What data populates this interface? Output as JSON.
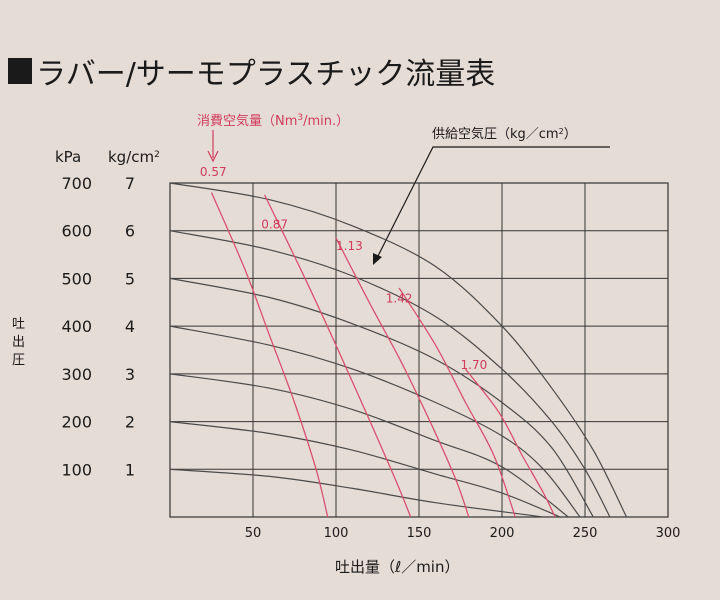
{
  "chart_data": {
    "type": "line",
    "title": "ラバー/サーモプラスチック流量表",
    "xlabel": "吐出量（ℓ／min）",
    "ylabel": "吐出圧",
    "y_unit_kpa": "kPa",
    "y_unit_kgcm": "kg/cm",
    "y_unit_kgcm_sup": "2",
    "xlim": [
      0,
      300
    ],
    "ylim": [
      0,
      7
    ],
    "x_ticks": [
      "50",
      "100",
      "150",
      "200",
      "250",
      "300"
    ],
    "x_tick_values": [
      50,
      100,
      150,
      200,
      250,
      300
    ],
    "y_ticks_kpa": [
      "100",
      "200",
      "300",
      "400",
      "500",
      "600",
      "700"
    ],
    "y_ticks_kgcm": [
      "1",
      "2",
      "3",
      "4",
      "5",
      "6",
      "7"
    ],
    "y_tick_values": [
      1,
      2,
      3,
      4,
      5,
      6,
      7
    ],
    "air_consumption_label": "消費空気量（Nm",
    "air_consumption_label_sup": "3",
    "air_consumption_label_tail": "/min.）",
    "supply_pressure_label": "供給空気圧（kg／cm",
    "supply_pressure_label_sup": "2",
    "supply_pressure_label_tail": "）",
    "pressure_series": [
      {
        "supply": 7,
        "points": [
          [
            0,
            7
          ],
          [
            60,
            6.65
          ],
          [
            110,
            6.1
          ],
          [
            160,
            5.25
          ],
          [
            200,
            4.0
          ],
          [
            230,
            2.7
          ],
          [
            255,
            1.4
          ],
          [
            275,
            0
          ]
        ]
      },
      {
        "supply": 6,
        "points": [
          [
            0,
            6
          ],
          [
            60,
            5.6
          ],
          [
            110,
            5.05
          ],
          [
            160,
            4.2
          ],
          [
            200,
            3.1
          ],
          [
            230,
            2.0
          ],
          [
            250,
            1.0
          ],
          [
            265,
            0
          ]
        ]
      },
      {
        "supply": 5,
        "points": [
          [
            0,
            5
          ],
          [
            60,
            4.6
          ],
          [
            110,
            4.05
          ],
          [
            160,
            3.3
          ],
          [
            200,
            2.4
          ],
          [
            230,
            1.45
          ],
          [
            255,
            0
          ]
        ]
      },
      {
        "supply": 4,
        "points": [
          [
            0,
            4
          ],
          [
            60,
            3.6
          ],
          [
            110,
            3.1
          ],
          [
            160,
            2.4
          ],
          [
            200,
            1.7
          ],
          [
            225,
            1.0
          ],
          [
            247,
            0
          ]
        ]
      },
      {
        "supply": 3,
        "points": [
          [
            0,
            3
          ],
          [
            60,
            2.7
          ],
          [
            110,
            2.25
          ],
          [
            160,
            1.6
          ],
          [
            200,
            1.05
          ],
          [
            240,
            0
          ]
        ]
      },
      {
        "supply": 2,
        "points": [
          [
            0,
            2
          ],
          [
            60,
            1.75
          ],
          [
            110,
            1.4
          ],
          [
            160,
            0.9
          ],
          [
            200,
            0.5
          ],
          [
            235,
            0
          ]
        ]
      },
      {
        "supply": 1,
        "points": [
          [
            0,
            1
          ],
          [
            60,
            0.85
          ],
          [
            110,
            0.6
          ],
          [
            160,
            0.3
          ],
          [
            225,
            0
          ]
        ]
      }
    ],
    "air_consumption_series": [
      {
        "name": "0.57",
        "label_at": [
          18,
          7.15
        ],
        "points": [
          [
            25,
            6.8
          ],
          [
            45,
            5.2
          ],
          [
            60,
            3.8
          ],
          [
            75,
            2.4
          ],
          [
            88,
            1.0
          ],
          [
            95,
            0
          ]
        ]
      },
      {
        "name": "0.87",
        "label_at": [
          55,
          6.05
        ],
        "points": [
          [
            57,
            6.75
          ],
          [
            80,
            5.1
          ],
          [
            100,
            3.6
          ],
          [
            118,
            2.2
          ],
          [
            135,
            0.85
          ],
          [
            145,
            0
          ]
        ]
      },
      {
        "name": "1.13",
        "label_at": [
          100,
          5.6
        ],
        "points": [
          [
            100,
            5.85
          ],
          [
            120,
            4.5
          ],
          [
            140,
            3.2
          ],
          [
            158,
            1.9
          ],
          [
            172,
            0.8
          ],
          [
            180,
            0
          ]
        ]
      },
      {
        "name": "1.42",
        "label_at": [
          130,
          4.5
        ],
        "points": [
          [
            138,
            4.8
          ],
          [
            160,
            3.6
          ],
          [
            178,
            2.4
          ],
          [
            195,
            1.3
          ],
          [
            208,
            0
          ]
        ]
      },
      {
        "name": "1.70",
        "label_at": [
          175,
          3.1
        ],
        "points": [
          [
            178,
            3.1
          ],
          [
            198,
            2.2
          ],
          [
            212,
            1.3
          ],
          [
            225,
            0.5
          ],
          [
            232,
            0
          ]
        ]
      }
    ]
  }
}
